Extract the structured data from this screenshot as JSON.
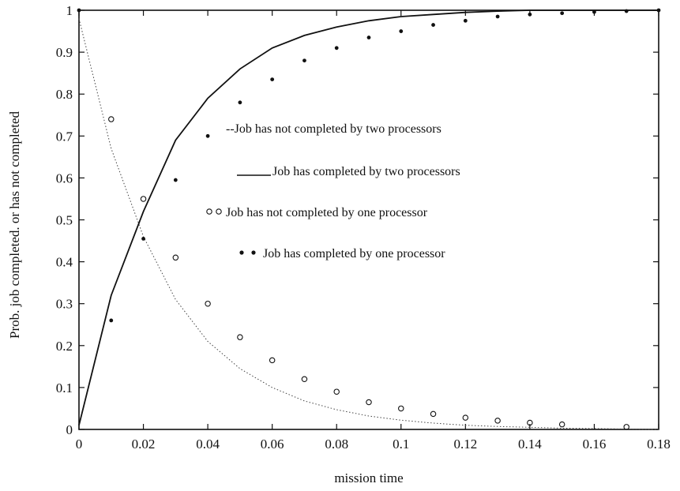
{
  "chart_data": {
    "type": "line",
    "xlabel": "mission time",
    "ylabel": "Prob. job completed. or has not completed",
    "xlim": [
      0,
      0.18
    ],
    "ylim": [
      0,
      1
    ],
    "xticks": [
      0,
      0.02,
      0.04,
      0.06,
      0.08,
      0.1,
      0.12,
      0.14,
      0.16,
      0.18
    ],
    "xtick_labels": [
      "0",
      "0.02",
      "0.04",
      "0.06",
      "0.08",
      "0.1",
      "0.12",
      "0.14",
      "0.16",
      "0.18"
    ],
    "yticks": [
      0,
      0.1,
      0.2,
      0.3,
      0.4,
      0.5,
      0.6,
      0.7,
      0.8,
      0.9,
      1
    ],
    "ytick_labels": [
      "0",
      "0.1",
      "0.2",
      "0.3",
      "0.4",
      "0.5",
      "0.6",
      "0.7",
      "0.8",
      "0.9",
      "1"
    ],
    "grid": false,
    "legend_position": "center",
    "series": [
      {
        "name": "Job has not completed by two processors",
        "style": "dotted-line",
        "x": [
          0,
          0.01,
          0.02,
          0.03,
          0.04,
          0.05,
          0.06,
          0.07,
          0.08,
          0.09,
          0.1,
          0.11,
          0.12,
          0.13,
          0.14,
          0.15,
          0.16,
          0.17,
          0.18
        ],
        "y": [
          0.98,
          0.67,
          0.46,
          0.31,
          0.21,
          0.145,
          0.1,
          0.068,
          0.047,
          0.032,
          0.022,
          0.015,
          0.01,
          0.007,
          0.005,
          0.003,
          0.002,
          0.001,
          0.0
        ]
      },
      {
        "name": "Job has completed by two processors",
        "style": "solid-line",
        "x": [
          0,
          0.01,
          0.02,
          0.03,
          0.04,
          0.05,
          0.06,
          0.07,
          0.08,
          0.09,
          0.1,
          0.11,
          0.12,
          0.13,
          0.14,
          0.15,
          0.16,
          0.17,
          0.18
        ],
        "y": [
          0.01,
          0.32,
          0.52,
          0.69,
          0.79,
          0.86,
          0.91,
          0.94,
          0.96,
          0.975,
          0.985,
          0.99,
          0.995,
          0.998,
          1.0,
          1.0,
          1.0,
          1.0,
          1.0
        ]
      },
      {
        "name": "Job has not completed by one processor",
        "style": "open-circle",
        "x": [
          0.01,
          0.02,
          0.03,
          0.04,
          0.05,
          0.06,
          0.07,
          0.08,
          0.09,
          0.1,
          0.11,
          0.12,
          0.13,
          0.14,
          0.15,
          0.17
        ],
        "y": [
          0.74,
          0.55,
          0.41,
          0.3,
          0.22,
          0.165,
          0.12,
          0.09,
          0.065,
          0.05,
          0.037,
          0.028,
          0.021,
          0.016,
          0.012,
          0.006
        ]
      },
      {
        "name": "Job has completed by one processor",
        "style": "filled-dot",
        "x": [
          0,
          0.01,
          0.02,
          0.03,
          0.04,
          0.05,
          0.06,
          0.07,
          0.08,
          0.09,
          0.1,
          0.11,
          0.12,
          0.13,
          0.14,
          0.15,
          0.16,
          0.17,
          0.18
        ],
        "y": [
          1.0,
          0.26,
          0.455,
          0.595,
          0.7,
          0.78,
          0.835,
          0.88,
          0.91,
          0.935,
          0.95,
          0.965,
          0.975,
          0.985,
          0.99,
          0.993,
          0.996,
          0.998,
          1.0
        ]
      }
    ],
    "legend": [
      {
        "marker": "--",
        "text": "Job has not completed by two processors"
      },
      {
        "marker": "____",
        "text": "Job has completed by two processors"
      },
      {
        "marker": "o o",
        "text": "Job has not completed by one processor"
      },
      {
        "marker": "* *",
        "text": "Job has completed by one processor"
      }
    ],
    "colors": {
      "line": "#111111",
      "dotted": "#444444",
      "background": "#ffffff"
    }
  }
}
